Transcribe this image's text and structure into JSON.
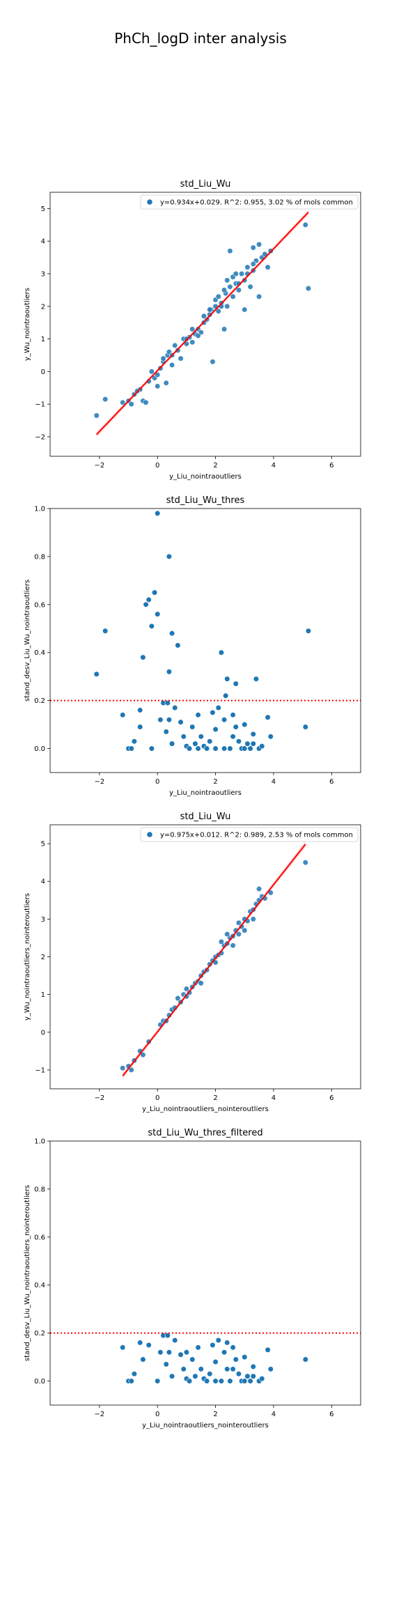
{
  "figure": {
    "suptitle": "PhCh_logD inter analysis"
  },
  "chart_data": [
    {
      "type": "scatter",
      "title": "std_Liu_Wu",
      "xlabel": "y_Liu_nointraoutliers",
      "ylabel": "y_Wu_nointraoutliers",
      "xlim": [
        -3.7,
        7.0
      ],
      "ylim": [
        -2.6,
        5.5
      ],
      "xticks": [
        -2,
        0,
        2,
        4,
        6
      ],
      "yticks": [
        -2,
        -1,
        0,
        1,
        2,
        3,
        4,
        5
      ],
      "grid": false,
      "legend_position": "upper-right",
      "legend": [
        "y=0.934x+0.029. R^2: 0.955, 3.02 % of mols common"
      ],
      "regression": {
        "slope": 0.934,
        "intercept": 0.029,
        "x_range": [
          -2.1,
          5.2
        ],
        "ci": true
      },
      "points": [
        [
          -2.1,
          -1.35
        ],
        [
          -1.8,
          -0.85
        ],
        [
          -1.2,
          -0.95
        ],
        [
          -1.0,
          -0.9
        ],
        [
          -0.9,
          -1.0
        ],
        [
          -0.8,
          -0.7
        ],
        [
          -0.6,
          -0.55
        ],
        [
          -0.5,
          -0.9
        ],
        [
          -0.4,
          -0.95
        ],
        [
          -0.3,
          -0.3
        ],
        [
          -0.2,
          0.0
        ],
        [
          -0.1,
          -0.2
        ],
        [
          0.0,
          -0.45
        ],
        [
          0.1,
          0.1
        ],
        [
          0.2,
          0.3
        ],
        [
          0.3,
          -0.35
        ],
        [
          0.35,
          0.5
        ],
        [
          0.4,
          0.6
        ],
        [
          0.5,
          0.2
        ],
        [
          0.6,
          0.8
        ],
        [
          0.7,
          0.65
        ],
        [
          0.8,
          0.4
        ],
        [
          0.9,
          1.0
        ],
        [
          1.0,
          0.85
        ],
        [
          1.1,
          1.05
        ],
        [
          1.2,
          0.9
        ],
        [
          1.3,
          1.15
        ],
        [
          1.4,
          1.3
        ],
        [
          1.5,
          1.2
        ],
        [
          1.6,
          1.5
        ],
        [
          1.7,
          1.6
        ],
        [
          1.8,
          1.75
        ],
        [
          1.85,
          1.9
        ],
        [
          1.9,
          0.3
        ],
        [
          2.0,
          2.0
        ],
        [
          2.1,
          1.85
        ],
        [
          2.2,
          2.1
        ],
        [
          2.3,
          1.3
        ],
        [
          2.35,
          2.4
        ],
        [
          2.4,
          2.0
        ],
        [
          2.5,
          2.6
        ],
        [
          2.5,
          3.7
        ],
        [
          2.6,
          2.3
        ],
        [
          2.7,
          2.7
        ],
        [
          2.8,
          2.5
        ],
        [
          2.9,
          3.0
        ],
        [
          3.0,
          1.9
        ],
        [
          3.0,
          2.8
        ],
        [
          3.1,
          3.2
        ],
        [
          3.2,
          2.6
        ],
        [
          3.3,
          3.1
        ],
        [
          3.4,
          3.4
        ],
        [
          3.5,
          2.3
        ],
        [
          3.5,
          3.9
        ],
        [
          3.6,
          3.5
        ],
        [
          3.7,
          3.6
        ],
        [
          3.8,
          3.2
        ],
        [
          3.9,
          3.7
        ],
        [
          3.3,
          3.8
        ],
        [
          5.1,
          4.5
        ],
        [
          5.2,
          2.55
        ],
        [
          1.2,
          1.3
        ],
        [
          1.4,
          1.1
        ],
        [
          2.0,
          2.2
        ],
        [
          2.2,
          2.0
        ],
        [
          2.6,
          2.9
        ],
        [
          2.8,
          2.7
        ],
        [
          0.0,
          -0.1
        ],
        [
          0.5,
          0.5
        ],
        [
          1.0,
          1.0
        ],
        [
          1.6,
          1.7
        ],
        [
          2.3,
          2.5
        ],
        [
          2.4,
          2.8
        ],
        [
          2.7,
          3.0
        ],
        [
          3.1,
          3.0
        ],
        [
          3.3,
          3.3
        ],
        [
          1.8,
          1.9
        ],
        [
          2.1,
          2.3
        ],
        [
          -0.7,
          -0.6
        ],
        [
          0.2,
          0.4
        ]
      ]
    },
    {
      "type": "scatter",
      "title": "std_Liu_Wu_thres",
      "xlabel": "y_Liu_nointraoutliers",
      "ylabel": "stand_desv_Liu_Wu_nointraoutliers",
      "xlim": [
        -3.7,
        7.0
      ],
      "ylim": [
        -0.1,
        1.0
      ],
      "xticks": [
        -2,
        0,
        2,
        4,
        6
      ],
      "yticks": [
        0.0,
        0.2,
        0.4,
        0.6,
        0.8,
        1.0
      ],
      "grid": false,
      "threshold": 0.2,
      "points": [
        [
          -2.1,
          0.31
        ],
        [
          -1.8,
          0.49
        ],
        [
          -1.2,
          0.14
        ],
        [
          -1.0,
          0.0
        ],
        [
          -0.9,
          0.0
        ],
        [
          -0.8,
          0.03
        ],
        [
          -0.6,
          0.16
        ],
        [
          -0.5,
          0.38
        ],
        [
          -0.4,
          0.6
        ],
        [
          -0.3,
          0.62
        ],
        [
          -0.2,
          0.51
        ],
        [
          -0.1,
          0.65
        ],
        [
          0.0,
          0.56
        ],
        [
          0.0,
          0.98
        ],
        [
          0.1,
          0.12
        ],
        [
          0.2,
          0.19
        ],
        [
          0.3,
          0.07
        ],
        [
          0.35,
          0.19
        ],
        [
          0.4,
          0.8
        ],
        [
          0.4,
          0.32
        ],
        [
          0.5,
          0.48
        ],
        [
          0.6,
          0.17
        ],
        [
          0.7,
          0.43
        ],
        [
          0.8,
          0.11
        ],
        [
          0.9,
          0.05
        ],
        [
          1.0,
          0.01
        ],
        [
          1.2,
          0.09
        ],
        [
          1.3,
          0.02
        ],
        [
          1.4,
          0.0
        ],
        [
          1.5,
          0.05
        ],
        [
          1.6,
          0.01
        ],
        [
          1.7,
          0.0
        ],
        [
          1.8,
          0.03
        ],
        [
          1.9,
          0.15
        ],
        [
          2.0,
          0.0
        ],
        [
          2.1,
          0.17
        ],
        [
          2.2,
          0.4
        ],
        [
          2.3,
          0.0
        ],
        [
          2.35,
          0.22
        ],
        [
          2.4,
          0.29
        ],
        [
          2.5,
          0.0
        ],
        [
          2.6,
          0.14
        ],
        [
          2.7,
          0.27
        ],
        [
          2.8,
          0.03
        ],
        [
          2.9,
          0.0
        ],
        [
          3.0,
          0.1
        ],
        [
          3.1,
          0.02
        ],
        [
          3.2,
          0.0
        ],
        [
          3.3,
          0.06
        ],
        [
          3.4,
          0.29
        ],
        [
          3.5,
          0.0
        ],
        [
          3.6,
          0.01
        ],
        [
          3.8,
          0.13
        ],
        [
          3.9,
          0.05
        ],
        [
          5.1,
          0.09
        ],
        [
          5.2,
          0.49
        ],
        [
          -0.2,
          0.0
        ],
        [
          0.5,
          0.02
        ],
        [
          1.1,
          0.0
        ],
        [
          2.0,
          0.08
        ],
        [
          2.6,
          0.05
        ],
        [
          3.0,
          0.0
        ],
        [
          -0.6,
          0.09
        ],
        [
          0.4,
          0.12
        ],
        [
          1.4,
          0.14
        ],
        [
          2.3,
          0.12
        ],
        [
          2.7,
          0.09
        ],
        [
          3.3,
          0.02
        ]
      ]
    },
    {
      "type": "scatter",
      "title": "std_Liu_Wu",
      "xlabel": "y_Liu_nointraoutliers_nointeroutliers",
      "ylabel": "y_Wu_nointraoutliers_nointeroutliers",
      "xlim": [
        -3.7,
        7.0
      ],
      "ylim": [
        -1.5,
        5.5
      ],
      "xticks": [
        -2,
        0,
        2,
        4,
        6
      ],
      "yticks": [
        -1,
        0,
        1,
        2,
        3,
        4,
        5
      ],
      "grid": false,
      "legend_position": "upper-right",
      "legend": [
        "y=0.975x+0.012. R^2: 0.989, 2.53 % of mols common"
      ],
      "regression": {
        "slope": 0.975,
        "intercept": 0.012,
        "x_range": [
          -1.2,
          5.1
        ],
        "ci": true
      },
      "points": [
        [
          -1.2,
          -0.95
        ],
        [
          -1.0,
          -0.9
        ],
        [
          -0.9,
          -1.0
        ],
        [
          -0.8,
          -0.75
        ],
        [
          -0.6,
          -0.5
        ],
        [
          -0.5,
          -0.6
        ],
        [
          -0.3,
          -0.25
        ],
        [
          0.1,
          0.2
        ],
        [
          0.2,
          0.3
        ],
        [
          0.3,
          0.3
        ],
        [
          0.4,
          0.45
        ],
        [
          0.5,
          0.6
        ],
        [
          0.6,
          0.65
        ],
        [
          0.7,
          0.9
        ],
        [
          0.8,
          0.8
        ],
        [
          0.9,
          1.0
        ],
        [
          1.0,
          0.95
        ],
        [
          1.1,
          1.05
        ],
        [
          1.2,
          1.2
        ],
        [
          1.3,
          1.3
        ],
        [
          1.4,
          1.35
        ],
        [
          1.5,
          1.5
        ],
        [
          1.6,
          1.6
        ],
        [
          1.7,
          1.65
        ],
        [
          1.8,
          1.8
        ],
        [
          1.9,
          1.9
        ],
        [
          2.0,
          2.0
        ],
        [
          2.1,
          2.05
        ],
        [
          2.2,
          2.1
        ],
        [
          2.3,
          2.3
        ],
        [
          2.4,
          2.35
        ],
        [
          2.5,
          2.5
        ],
        [
          2.6,
          2.55
        ],
        [
          2.7,
          2.7
        ],
        [
          2.8,
          2.9
        ],
        [
          2.9,
          2.8
        ],
        [
          3.0,
          3.0
        ],
        [
          3.1,
          2.95
        ],
        [
          3.2,
          3.2
        ],
        [
          3.3,
          3.25
        ],
        [
          3.4,
          3.4
        ],
        [
          3.5,
          3.5
        ],
        [
          3.6,
          3.6
        ],
        [
          3.7,
          3.55
        ],
        [
          3.9,
          3.7
        ],
        [
          5.1,
          4.5
        ],
        [
          2.4,
          2.6
        ],
        [
          2.6,
          2.3
        ],
        [
          2.8,
          2.6
        ],
        [
          3.0,
          2.7
        ],
        [
          1.0,
          1.15
        ],
        [
          1.5,
          1.3
        ],
        [
          2.0,
          1.85
        ],
        [
          2.2,
          2.4
        ],
        [
          3.5,
          3.8
        ],
        [
          3.3,
          3.0
        ]
      ]
    },
    {
      "type": "scatter",
      "title": "std_Liu_Wu_thres_filtered",
      "xlabel": "y_Liu_nointraoutliers_nointeroutliers",
      "ylabel": "stand_desv_Liu_Wu_nointraoutliers_nointeroutliers",
      "xlim": [
        -3.7,
        7.0
      ],
      "ylim": [
        -0.1,
        1.0
      ],
      "xticks": [
        -2,
        0,
        2,
        4,
        6
      ],
      "yticks": [
        0.0,
        0.2,
        0.4,
        0.6,
        0.8,
        1.0
      ],
      "grid": false,
      "threshold": 0.2,
      "points": [
        [
          -1.2,
          0.14
        ],
        [
          -1.0,
          0.0
        ],
        [
          -0.9,
          0.0
        ],
        [
          -0.8,
          0.03
        ],
        [
          -0.6,
          0.16
        ],
        [
          -0.5,
          0.09
        ],
        [
          -0.3,
          0.15
        ],
        [
          0.1,
          0.12
        ],
        [
          0.2,
          0.19
        ],
        [
          0.3,
          0.07
        ],
        [
          0.35,
          0.19
        ],
        [
          0.4,
          0.12
        ],
        [
          0.5,
          0.02
        ],
        [
          0.6,
          0.17
        ],
        [
          0.8,
          0.11
        ],
        [
          0.9,
          0.05
        ],
        [
          1.0,
          0.01
        ],
        [
          1.2,
          0.09
        ],
        [
          1.3,
          0.02
        ],
        [
          1.4,
          0.14
        ],
        [
          1.5,
          0.05
        ],
        [
          1.6,
          0.01
        ],
        [
          1.7,
          0.0
        ],
        [
          1.8,
          0.03
        ],
        [
          1.9,
          0.15
        ],
        [
          2.0,
          0.0
        ],
        [
          2.1,
          0.17
        ],
        [
          2.2,
          0.0
        ],
        [
          2.3,
          0.12
        ],
        [
          2.4,
          0.05
        ],
        [
          2.5,
          0.0
        ],
        [
          2.6,
          0.14
        ],
        [
          2.7,
          0.09
        ],
        [
          2.8,
          0.03
        ],
        [
          2.9,
          0.0
        ],
        [
          3.0,
          0.1
        ],
        [
          3.1,
          0.02
        ],
        [
          3.2,
          0.0
        ],
        [
          3.3,
          0.06
        ],
        [
          3.5,
          0.0
        ],
        [
          3.6,
          0.01
        ],
        [
          3.8,
          0.13
        ],
        [
          3.9,
          0.05
        ],
        [
          5.1,
          0.09
        ],
        [
          0.0,
          0.0
        ],
        [
          1.1,
          0.0
        ],
        [
          2.0,
          0.08
        ],
        [
          2.6,
          0.05
        ],
        [
          3.0,
          0.0
        ],
        [
          3.3,
          0.02
        ],
        [
          2.4,
          0.16
        ],
        [
          1.0,
          0.12
        ]
      ]
    }
  ]
}
